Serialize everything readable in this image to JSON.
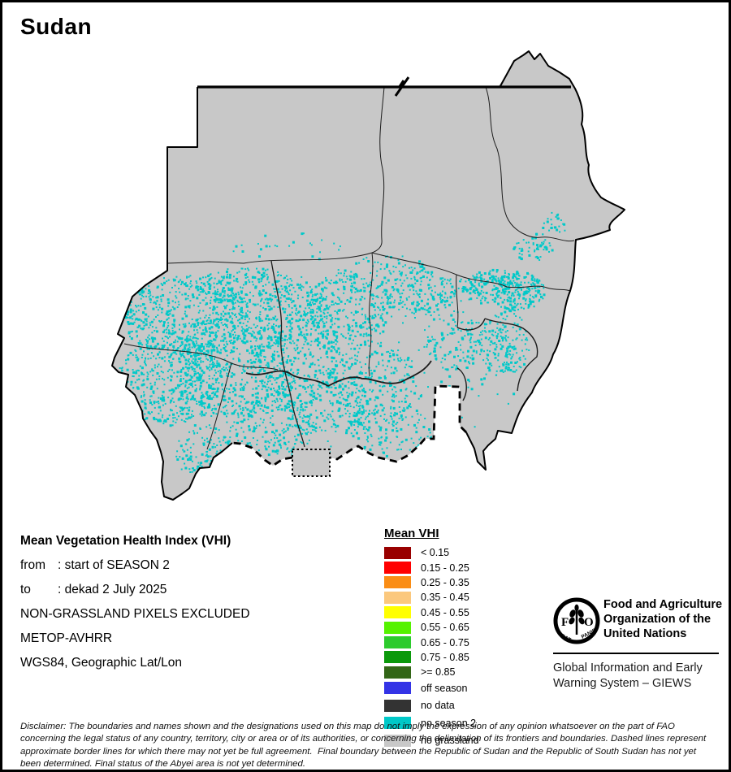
{
  "title": "Sudan",
  "info_block": {
    "heading": "Mean Vegetation Health Index (VHI)",
    "rows": [
      {
        "label": "from",
        "value": ": start of SEASON 2"
      },
      {
        "label": "to",
        "value": ": dekad 2 July 2025"
      }
    ],
    "lines": [
      "NON-GRASSLAND PIXELS EXCLUDED",
      "METOP-AVHRR",
      "WGS84, Geographic Lat/Lon"
    ]
  },
  "legend": {
    "title": "Mean VHI",
    "classes": [
      {
        "label": "< 0.15",
        "color": "#990000"
      },
      {
        "label": "0.15 - 0.25",
        "color": "#FF0000"
      },
      {
        "label": "0.25 - 0.35",
        "color": "#FA8D15"
      },
      {
        "label": "0.35 - 0.45",
        "color": "#FBC87D"
      },
      {
        "label": "0.45 - 0.55",
        "color": "#FFFF00"
      },
      {
        "label": "0.55 - 0.65",
        "color": "#55F200"
      },
      {
        "label": "0.65 - 0.75",
        "color": "#2DCB2D"
      },
      {
        "label": "0.75 - 0.85",
        "color": "#0B990B"
      },
      {
        "label": ">= 0.85",
        "color": "#336617"
      }
    ],
    "status_classes": [
      {
        "label": "off season",
        "color": "#3333E6"
      },
      {
        "label": "no data",
        "color": "#333333"
      },
      {
        "label": "no season 2",
        "color": "#00C8C8"
      },
      {
        "label": "no grassland",
        "color": "#C8C8C8"
      }
    ]
  },
  "org_block": {
    "name_lines": [
      "Food and Agriculture",
      "Organization of the",
      "United Nations"
    ],
    "logo_text": "FAO",
    "logo_motto_left": "FIAT",
    "logo_motto_right": "PANIS",
    "system_lines": [
      "Global Information and Early",
      "Warning System – GIEWS"
    ]
  },
  "disclaimer": "Disclaimer: The boundaries and names shown and the designations used on this map do not imply the expression of any opinion whatsoever on the part of FAO concerning the legal status of any country, territory, city or area or of its authorities, or concerning the delimitation of its frontiers and boundaries. Dashed lines represent approximate border lines for which there may not yet be full agreement.  Final boundary between the Republic of Sudan and the Republic of South Sudan has not yet been determined. Final status of the Abyei area is not yet determined.",
  "map": {
    "country": "Sudan",
    "fill_color": "#C8C8C8",
    "border_color": "#000000",
    "season2_color": "#00C9C9",
    "background_color": "#FFFFFF"
  }
}
